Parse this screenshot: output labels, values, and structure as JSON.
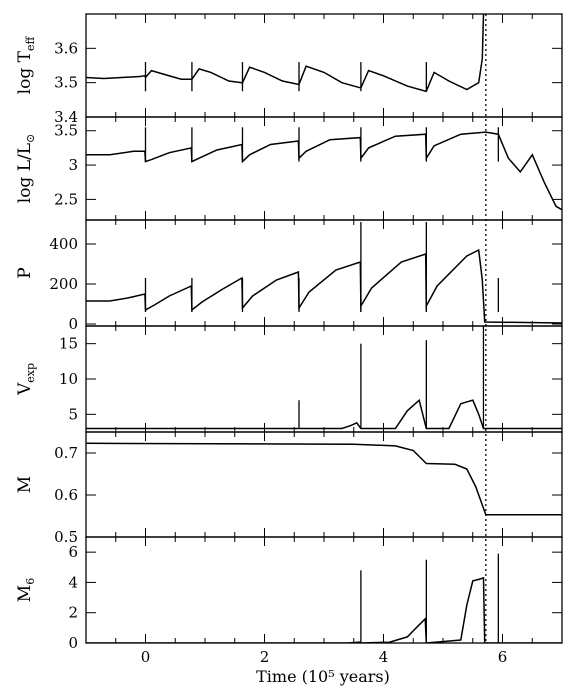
{
  "chart_data": {
    "type": "line",
    "xlabel": "Time (10⁵ years)",
    "xlim": [
      -1,
      7
    ],
    "xticks": [
      0,
      2,
      4,
      6
    ],
    "xtick_labels": [
      "0",
      "2",
      "4",
      "6"
    ],
    "thermal_pulse_times": [
      0,
      0.78,
      1.63,
      2.58,
      3.62,
      4.72,
      5.68,
      5.93
    ],
    "vertical_dotted_line_x": 5.72,
    "panels": [
      {
        "id": "teff",
        "ylabel": "log T",
        "ylabel_sub": "eff",
        "ylim": [
          3.4,
          3.7
        ],
        "yticks": [
          3.4,
          3.5,
          3.6
        ],
        "ytick_labels": [
          "3.4",
          "3.5",
          "3.6"
        ],
        "series": [
          {
            "x": [
              -1.0,
              -0.7,
              -0.4,
              -0.1,
              -0.01,
              0.0,
              0.1,
              0.3,
              0.6,
              0.77,
              0.78,
              0.9,
              1.1,
              1.4,
              1.62,
              1.63,
              1.75,
              2.0,
              2.3,
              2.57,
              2.58,
              2.7,
              3.0,
              3.3,
              3.61,
              3.62,
              3.75,
              4.0,
              4.4,
              4.71,
              4.72,
              4.85,
              5.1,
              5.4,
              5.6,
              5.66,
              5.68
            ],
            "y": [
              3.515,
              3.512,
              3.515,
              3.518,
              3.52,
              3.515,
              3.535,
              3.525,
              3.51,
              3.51,
              3.51,
              3.54,
              3.53,
              3.505,
              3.5,
              3.5,
              3.545,
              3.53,
              3.505,
              3.495,
              3.495,
              3.548,
              3.53,
              3.5,
              3.485,
              3.485,
              3.535,
              3.52,
              3.49,
              3.475,
              3.475,
              3.53,
              3.505,
              3.48,
              3.5,
              3.57,
              3.7
            ]
          }
        ]
      },
      {
        "id": "lum",
        "ylabel": "log L/L",
        "ylabel_sub": "⊙",
        "ylim": [
          2.2,
          3.7
        ],
        "yticks": [
          2.5,
          3.0,
          3.5
        ],
        "ytick_labels": [
          "2.5",
          "3",
          "3.5"
        ],
        "series": [
          {
            "x": [
              -1.0,
              -0.6,
              -0.2,
              -0.01,
              0.0,
              0.1,
              0.4,
              0.77,
              0.78,
              0.9,
              1.2,
              1.62,
              1.63,
              1.75,
              2.1,
              2.57,
              2.58,
              2.7,
              3.1,
              3.61,
              3.62,
              3.75,
              4.2,
              4.71,
              4.72,
              4.85,
              5.3,
              5.72,
              5.93,
              6.1,
              6.3,
              6.5,
              6.7,
              6.9,
              7.0
            ],
            "y": [
              3.15,
              3.15,
              3.2,
              3.2,
              3.05,
              3.08,
              3.18,
              3.25,
              3.05,
              3.1,
              3.22,
              3.3,
              3.05,
              3.15,
              3.3,
              3.35,
              3.1,
              3.2,
              3.37,
              3.4,
              3.1,
              3.25,
              3.42,
              3.45,
              3.1,
              3.28,
              3.45,
              3.48,
              3.45,
              3.1,
              2.9,
              3.15,
              2.75,
              2.4,
              2.35
            ]
          }
        ]
      },
      {
        "id": "period",
        "ylabel": "P",
        "ylabel_sub": "",
        "ylim": [
          -10,
          520
        ],
        "yticks": [
          0,
          200,
          400
        ],
        "ytick_labels": [
          "0",
          "200",
          "400"
        ],
        "series": [
          {
            "x": [
              -1.0,
              -0.6,
              -0.3,
              -0.01,
              0.0,
              0.15,
              0.4,
              0.77,
              0.78,
              0.95,
              1.3,
              1.62,
              1.63,
              1.8,
              2.2,
              2.57,
              2.58,
              2.75,
              3.2,
              3.61,
              3.62,
              3.8,
              4.3,
              4.71,
              4.72,
              4.9,
              5.4,
              5.6,
              5.66,
              5.7,
              7.0
            ],
            "y": [
              115,
              115,
              130,
              150,
              70,
              95,
              140,
              190,
              70,
              110,
              175,
              230,
              80,
              140,
              220,
              260,
              80,
              160,
              270,
              310,
              90,
              180,
              310,
              350,
              90,
              190,
              340,
              370,
              220,
              10,
              5
            ]
          }
        ]
      },
      {
        "id": "vexp",
        "ylabel": "V",
        "ylabel_sub": "exp",
        "ylim": [
          2.5,
          17.5
        ],
        "yticks": [
          5,
          10,
          15
        ],
        "ytick_labels": [
          "5",
          "10",
          "15"
        ],
        "series": [
          {
            "x": [
              -1.0,
              3.3,
              3.45,
              3.55,
              3.62,
              4.2,
              4.4,
              4.6,
              4.72,
              5.1,
              5.3,
              5.5,
              5.6,
              5.68,
              7.0
            ],
            "y": [
              3.0,
              3.0,
              3.4,
              3.8,
              3.0,
              3.0,
              5.5,
              7.0,
              3.0,
              3.0,
              6.5,
              7.0,
              5.0,
              3.0,
              3.0
            ]
          }
        ]
      },
      {
        "id": "mass",
        "ylabel": "M",
        "ylabel_sub": "",
        "ylim": [
          0.5,
          0.75
        ],
        "yticks": [
          0.5,
          0.6,
          0.7
        ],
        "ytick_labels": [
          "0.5",
          "0.6",
          "0.7"
        ],
        "series": [
          {
            "x": [
              -1.0,
              3.5,
              4.2,
              4.5,
              4.72,
              5.2,
              5.4,
              5.55,
              5.72,
              7.0
            ],
            "y": [
              0.723,
              0.721,
              0.717,
              0.706,
              0.675,
              0.673,
              0.662,
              0.62,
              0.553,
              0.553
            ]
          }
        ]
      },
      {
        "id": "mdot",
        "ylabel": "M",
        "ylabel_sub": "6",
        "ylim": [
          0,
          7
        ],
        "yticks": [
          0,
          2,
          4,
          6
        ],
        "ytick_labels": [
          "0",
          "2",
          "4",
          "6"
        ],
        "series": [
          {
            "x": [
              -1.0,
              3.4,
              3.6,
              3.62,
              4.1,
              4.4,
              4.6,
              4.7,
              4.72,
              5.3,
              5.4,
              5.5,
              5.6,
              5.68,
              5.7,
              7.0
            ],
            "y": [
              0.0,
              0.0,
              0.05,
              0.0,
              0.05,
              0.4,
              1.2,
              1.6,
              0.0,
              0.2,
              2.5,
              4.1,
              4.2,
              4.3,
              0.0,
              0.0
            ]
          }
        ]
      }
    ],
    "spikes": [
      {
        "panel": "teff",
        "x": [
          0.0,
          0.78,
          1.63,
          2.58,
          3.62,
          4.72
        ],
        "y_low": 3.475,
        "y_high": 3.56
      },
      {
        "panel": "lum",
        "x": [
          0.0,
          0.78,
          1.63,
          2.58,
          3.62,
          4.72,
          5.93
        ],
        "y_low": 3.05,
        "y_high": 3.55
      },
      {
        "panel": "period",
        "x": [
          0.0,
          0.78,
          1.63,
          2.58,
          3.62,
          4.72,
          5.93
        ],
        "y_low": 60,
        "y_high": 230
      },
      {
        "panel": "period",
        "x": [
          3.62,
          4.72
        ],
        "y_low": 60,
        "y_high": 510
      },
      {
        "panel": "vexp",
        "x": [
          2.58
        ],
        "y_low": 3.0,
        "y_high": 7.0
      },
      {
        "panel": "vexp",
        "x": [
          3.62
        ],
        "y_low": 3.0,
        "y_high": 15.0
      },
      {
        "panel": "vexp",
        "x": [
          4.72
        ],
        "y_low": 3.0,
        "y_high": 15.5
      },
      {
        "panel": "vexp",
        "x": [
          5.68
        ],
        "y_low": 3.0,
        "y_high": 17.5
      },
      {
        "panel": "mdot",
        "x": [
          3.62
        ],
        "y_low": 0.0,
        "y_high": 4.8
      },
      {
        "panel": "mdot",
        "x": [
          4.72
        ],
        "y_low": 0.0,
        "y_high": 5.5
      },
      {
        "panel": "mdot",
        "x": [
          5.93
        ],
        "y_low": 0.0,
        "y_high": 5.9
      }
    ],
    "grid": false,
    "line_color": "#000000"
  }
}
